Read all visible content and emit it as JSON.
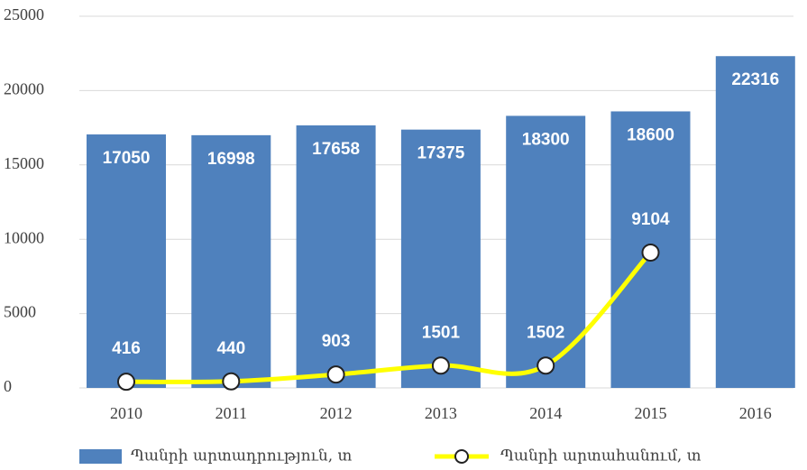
{
  "chart_data": {
    "type": "bar_line",
    "categories": [
      "2010",
      "2011",
      "2012",
      "2013",
      "2014",
      "2015",
      "2016"
    ],
    "series": [
      {
        "name": "Պանրի արտադրություն, տ",
        "type": "bar",
        "color": "#4f81bd",
        "values": [
          17050,
          16998,
          17658,
          17375,
          18300,
          18600,
          22316
        ]
      },
      {
        "name": "Պանրի արտահանում, տ",
        "type": "line",
        "color": "#ffff00",
        "values": [
          416,
          440,
          903,
          1501,
          1502,
          9104,
          null
        ]
      }
    ],
    "ylim": [
      0,
      25000
    ],
    "yticks": [
      0,
      5000,
      10000,
      15000,
      20000,
      25000
    ],
    "grid": true,
    "legend": "bottom"
  }
}
